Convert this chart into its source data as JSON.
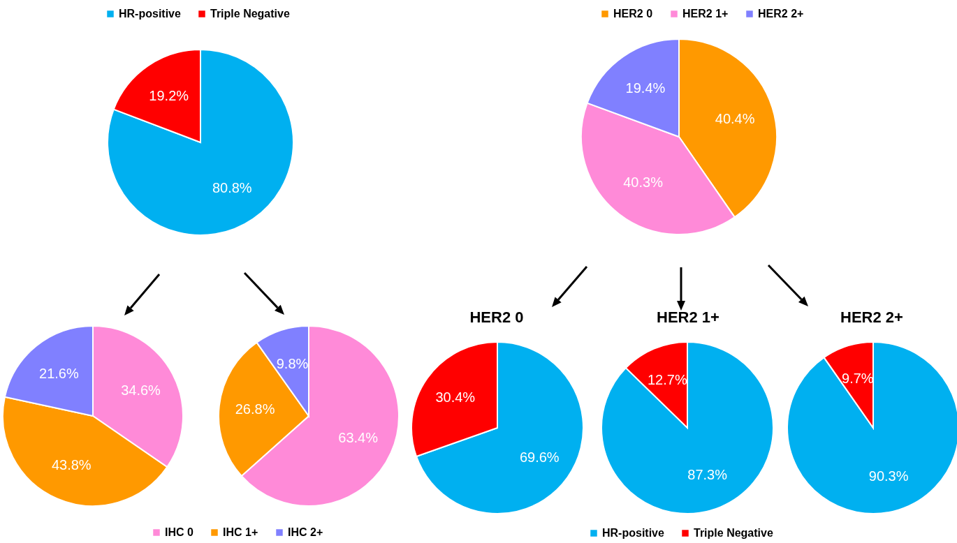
{
  "chart_data": [
    {
      "type": "pie",
      "categories": [
        "HR-positive",
        "Triple Negative"
      ],
      "values": [
        80.8,
        19.2
      ],
      "colors": [
        "#00b0f0",
        "#ff0000"
      ],
      "value_labels": [
        "80.8%",
        "19.2%"
      ],
      "legend": "top"
    },
    {
      "type": "pie",
      "categories": [
        "HER2 0",
        "HER2 1+",
        "HER2 2+"
      ],
      "values": [
        40.4,
        40.3,
        19.4
      ],
      "colors": [
        "#ff9900",
        "#ff8ad8",
        "#8080ff"
      ],
      "value_labels": [
        "40.4%",
        "40.3%",
        "19.4%"
      ],
      "legend": "top"
    },
    {
      "type": "pie",
      "categories": [
        "IHC 0",
        "IHC 1+",
        "IHC 2+"
      ],
      "colors": [
        "#ff8ad8",
        "#ff9900",
        "#8080ff"
      ],
      "legend": "bottom",
      "series": [
        {
          "values": [
            34.6,
            43.8,
            21.6
          ],
          "value_labels": [
            "34.6%",
            "43.8%",
            "21.6%"
          ]
        },
        {
          "values": [
            63.4,
            26.8,
            9.8
          ],
          "value_labels": [
            "63.4%",
            "26.8%",
            "9.8%"
          ]
        }
      ]
    },
    {
      "type": "pie",
      "categories": [
        "HR-positive",
        "Triple Negative"
      ],
      "colors": [
        "#00b0f0",
        "#ff0000"
      ],
      "legend": "bottom",
      "series": [
        {
          "name": "HER2 0",
          "values": [
            69.6,
            30.4
          ],
          "value_labels": [
            "69.6%",
            "30.4%"
          ]
        },
        {
          "name": "HER2 1+",
          "values": [
            87.3,
            12.7
          ],
          "value_labels": [
            "87.3%",
            "12.7%"
          ]
        },
        {
          "name": "HER2 2+",
          "values": [
            90.3,
            9.7
          ],
          "value_labels": [
            "90.3%",
            "9.7%"
          ]
        }
      ]
    }
  ]
}
